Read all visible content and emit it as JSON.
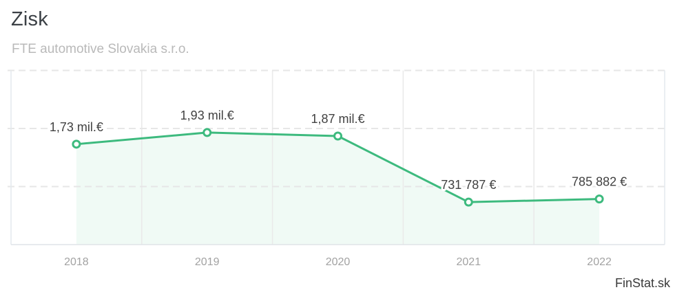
{
  "header": {
    "title": "Zisk",
    "subtitle": "FTE automotive Slovakia s.r.o."
  },
  "chart_data": {
    "type": "line",
    "title": "Zisk",
    "subtitle": "FTE automotive Slovakia s.r.o.",
    "categories": [
      "2018",
      "2019",
      "2020",
      "2021",
      "2022"
    ],
    "series": [
      {
        "name": "Zisk",
        "values": [
          1730000,
          1930000,
          1870000,
          731787,
          785882
        ],
        "point_labels": [
          "1,73 mil.€",
          "1,93 mil.€",
          "1,87 mil.€",
          "731 787 €",
          "785 882 €"
        ]
      }
    ],
    "ylim": [
      0,
      3000000
    ],
    "y_grid_step": 1000000,
    "xlabel": "",
    "ylabel": "",
    "legend": "none",
    "grid": "horizontal-dashed, vertical-solid-band-boundaries",
    "marker": "open-circle",
    "area_fill_under_line": true,
    "colors": {
      "line": "#3dba7e",
      "marker_fill": "#ffffff",
      "area_fill": "rgba(61,186,126,0.08)",
      "grid_dashed": "#e6e6e6",
      "grid_vertical": "#eaeaea",
      "axis_side_border": "#e4eaee",
      "axis_bottom": "#dfe4e8",
      "value_label_text": "#414141",
      "tick_label_text": "#a2a2a2"
    }
  },
  "watermark": {
    "label": "FinStat.sk"
  }
}
